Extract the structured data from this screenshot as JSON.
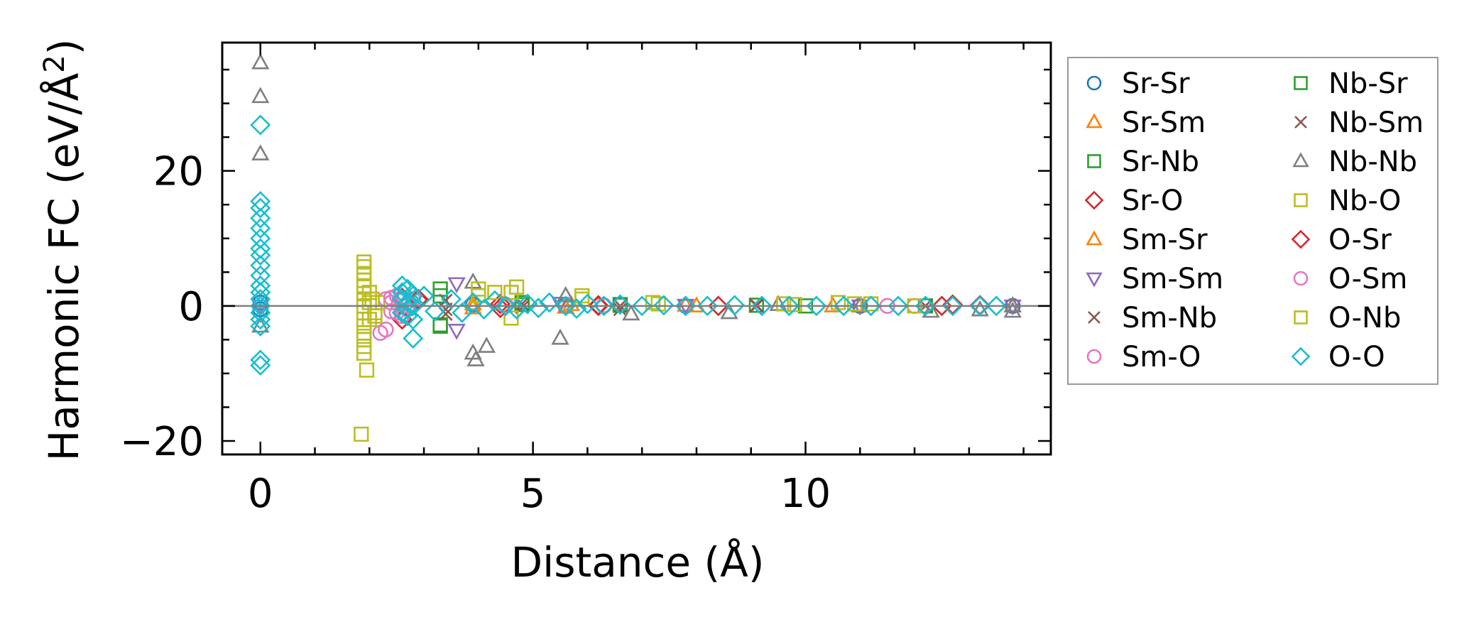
{
  "chart_data": {
    "type": "scatter",
    "title": "",
    "xlabel": "Distance (Å)",
    "ylabel_main": "Harmonic FC (eV/Å",
    "ylabel_sup": "2",
    "ylabel_close": ")",
    "xlim": [
      -0.7,
      14.5
    ],
    "ylim": [
      -22,
      39
    ],
    "xticks": [
      0,
      5,
      10
    ],
    "yticks": [
      -20,
      0,
      20
    ],
    "xtick_labels": [
      "0",
      "5",
      "10"
    ],
    "ytick_labels": [
      "−20",
      "0",
      "20"
    ],
    "zero_line": true,
    "grid": false,
    "legend_position": "outside-right",
    "series": [
      {
        "name": "Sr-Sr",
        "marker": "circle",
        "color": "#1f77b4",
        "points": [
          [
            0,
            0.5
          ],
          [
            0,
            -0.5
          ],
          [
            3.9,
            0.2
          ],
          [
            5.6,
            0.1
          ],
          [
            7.8,
            0.0
          ],
          [
            11.0,
            0.0
          ],
          [
            13.8,
            0.0
          ]
        ]
      },
      {
        "name": "Sr-Sm",
        "marker": "triangle-up",
        "color": "#ff7f0e",
        "points": [
          [
            3.9,
            0.3
          ],
          [
            5.6,
            -0.2
          ],
          [
            7.8,
            0.1
          ],
          [
            11.0,
            0.0
          ],
          [
            13.8,
            0.0
          ]
        ]
      },
      {
        "name": "Sr-Nb",
        "marker": "square",
        "color": "#2ca02c",
        "points": [
          [
            3.3,
            1.5
          ],
          [
            3.3,
            -2.8
          ],
          [
            4.8,
            0.5
          ],
          [
            6.6,
            0.2
          ],
          [
            9.1,
            0.1
          ],
          [
            12.2,
            0.0
          ]
        ]
      },
      {
        "name": "Sr-O",
        "marker": "diamond",
        "color": "#d62728",
        "points": [
          [
            2.6,
            1.2
          ],
          [
            2.6,
            -2.0
          ],
          [
            2.9,
            0.8
          ],
          [
            4.4,
            0.3
          ],
          [
            6.2,
            0.1
          ],
          [
            8.4,
            0.0
          ],
          [
            12.5,
            0.0
          ],
          [
            13.2,
            0.1
          ]
        ]
      },
      {
        "name": "Sm-Sr",
        "marker": "triangle-up",
        "color": "#ff7f0e",
        "points": [
          [
            3.9,
            -0.3
          ],
          [
            5.7,
            0.2
          ],
          [
            8.0,
            0.0
          ],
          [
            10.5,
            0.0
          ]
        ]
      },
      {
        "name": "Sm-Sm",
        "marker": "triangle-down",
        "color": "#9467bd",
        "points": [
          [
            0,
            0.0
          ],
          [
            3.6,
            3.3
          ],
          [
            3.6,
            -3.6
          ],
          [
            5.5,
            0.4
          ],
          [
            7.8,
            0.1
          ],
          [
            11.0,
            0.0
          ],
          [
            13.8,
            0.0
          ]
        ]
      },
      {
        "name": "Sm-Nb",
        "marker": "x",
        "color": "#8c564b",
        "points": [
          [
            3.4,
            0.8
          ],
          [
            3.4,
            -1.2
          ],
          [
            4.8,
            0.3
          ],
          [
            6.6,
            -0.5
          ],
          [
            9.1,
            0.1
          ],
          [
            12.2,
            0.0
          ]
        ]
      },
      {
        "name": "Sm-O",
        "marker": "circle",
        "color": "#e377c2",
        "points": [
          [
            2.2,
            -4.0
          ],
          [
            2.3,
            1.0
          ],
          [
            2.4,
            0.5
          ],
          [
            2.4,
            -0.8
          ],
          [
            2.5,
            1.5
          ],
          [
            2.6,
            -1.5
          ],
          [
            2.7,
            0.0
          ],
          [
            2.8,
            1.0
          ],
          [
            4.5,
            0.2
          ],
          [
            6.3,
            0.1
          ],
          [
            12.0,
            0.0
          ]
        ]
      },
      {
        "name": "Nb-Sr",
        "marker": "square",
        "color": "#2ca02c",
        "points": [
          [
            3.3,
            2.5
          ],
          [
            3.3,
            -3.0
          ],
          [
            4.8,
            0.2
          ],
          [
            6.6,
            0.1
          ],
          [
            10.0,
            0.0
          ]
        ]
      },
      {
        "name": "Nb-Sm",
        "marker": "x",
        "color": "#8c564b",
        "points": [
          [
            3.4,
            -0.5
          ],
          [
            4.8,
            -0.2
          ],
          [
            6.6,
            0.0
          ],
          [
            9.1,
            0.0
          ]
        ]
      },
      {
        "name": "Nb-Nb",
        "marker": "triangle-up",
        "color": "#7f7f7f",
        "points": [
          [
            0,
            36.0
          ],
          [
            0,
            31.0
          ],
          [
            0,
            22.5
          ],
          [
            0,
            -3.0
          ],
          [
            3.9,
            3.5
          ],
          [
            3.9,
            -7.0
          ],
          [
            3.95,
            -8.0
          ],
          [
            4.15,
            -6.0
          ],
          [
            5.5,
            -4.8
          ],
          [
            5.6,
            1.5
          ],
          [
            6.8,
            -1.2
          ],
          [
            8.6,
            -1.0
          ],
          [
            9.5,
            0.2
          ],
          [
            11.0,
            0.0
          ],
          [
            12.3,
            -0.8
          ],
          [
            13.2,
            -0.6
          ],
          [
            13.8,
            0.0
          ],
          [
            13.8,
            -0.8
          ]
        ]
      },
      {
        "name": "Nb-O",
        "marker": "square",
        "color": "#bcbd22",
        "points": [
          [
            1.9,
            6.5
          ],
          [
            1.9,
            5.8
          ],
          [
            1.9,
            4.8
          ],
          [
            1.9,
            3.8
          ],
          [
            1.9,
            2.8
          ],
          [
            1.9,
            1.8
          ],
          [
            1.9,
            1.0
          ],
          [
            1.9,
            0.0
          ],
          [
            1.9,
            -1.0
          ],
          [
            1.9,
            -2.0
          ],
          [
            1.9,
            -3.0
          ],
          [
            1.9,
            -4.0
          ],
          [
            1.9,
            -5.0
          ],
          [
            1.9,
            -6.0
          ],
          [
            1.9,
            -7.0
          ],
          [
            1.95,
            -9.5
          ],
          [
            1.85,
            -19.0
          ],
          [
            2.0,
            2.0
          ],
          [
            2.0,
            -2.0
          ],
          [
            2.05,
            1.0
          ],
          [
            2.1,
            -1.0
          ],
          [
            2.15,
            0.5
          ],
          [
            4.0,
            2.5
          ],
          [
            4.3,
            2.0
          ],
          [
            4.7,
            2.8
          ],
          [
            4.6,
            -1.8
          ],
          [
            5.9,
            1.5
          ],
          [
            7.2,
            0.5
          ],
          [
            9.6,
            0.3
          ],
          [
            10.6,
            0.5
          ],
          [
            11.2,
            0.3
          ]
        ]
      },
      {
        "name": "O-Sr",
        "marker": "diamond",
        "color": "#d62728",
        "points": [
          [
            2.6,
            -1.0
          ],
          [
            2.9,
            1.0
          ],
          [
            4.4,
            -0.3
          ],
          [
            6.2,
            0.0
          ],
          [
            12.7,
            0.2
          ]
        ]
      },
      {
        "name": "O-Sm",
        "marker": "circle",
        "color": "#e377c2",
        "points": [
          [
            2.3,
            -3.5
          ],
          [
            2.4,
            1.2
          ],
          [
            2.5,
            -1.0
          ],
          [
            2.6,
            0.8
          ],
          [
            2.7,
            -0.5
          ],
          [
            4.5,
            0.1
          ],
          [
            6.3,
            0.0
          ],
          [
            11.5,
            0.0
          ]
        ]
      },
      {
        "name": "O-Nb",
        "marker": "square",
        "color": "#bcbd22",
        "points": [
          [
            1.9,
            3.0
          ],
          [
            1.9,
            -4.5
          ],
          [
            2.0,
            0.5
          ],
          [
            2.1,
            -1.5
          ],
          [
            4.0,
            1.5
          ],
          [
            4.6,
            2.0
          ],
          [
            5.9,
            1.0
          ],
          [
            7.3,
            0.3
          ],
          [
            9.8,
            0.2
          ],
          [
            10.9,
            0.3
          ],
          [
            12.0,
            0.0
          ]
        ]
      },
      {
        "name": "O-O",
        "marker": "diamond",
        "color": "#17becf",
        "points": [
          [
            0,
            26.8
          ],
          [
            0,
            15.5
          ],
          [
            0,
            14.5
          ],
          [
            0,
            13.0
          ],
          [
            0,
            11.5
          ],
          [
            0,
            10.0
          ],
          [
            0,
            8.5
          ],
          [
            0,
            7.5
          ],
          [
            0,
            6.0
          ],
          [
            0,
            4.5
          ],
          [
            0,
            3.0
          ],
          [
            0,
            2.0
          ],
          [
            0,
            1.0
          ],
          [
            0,
            0.0
          ],
          [
            0,
            -1.0
          ],
          [
            0,
            -2.0
          ],
          [
            0,
            -3.0
          ],
          [
            0,
            -8.0
          ],
          [
            0,
            -8.8
          ],
          [
            2.6,
            3.0
          ],
          [
            2.7,
            2.5
          ],
          [
            2.6,
            2.0
          ],
          [
            2.8,
            1.5
          ],
          [
            2.6,
            1.0
          ],
          [
            2.7,
            0.5
          ],
          [
            2.8,
            0.0
          ],
          [
            2.7,
            -0.5
          ],
          [
            2.6,
            -1.0
          ],
          [
            2.7,
            -1.5
          ],
          [
            2.8,
            -2.0
          ],
          [
            2.8,
            -4.8
          ],
          [
            3.0,
            1.5
          ],
          [
            3.2,
            -0.8
          ],
          [
            3.5,
            1.0
          ],
          [
            3.7,
            -1.0
          ],
          [
            3.9,
            0.5
          ],
          [
            4.1,
            -0.5
          ],
          [
            4.3,
            0.8
          ],
          [
            4.5,
            0.0
          ],
          [
            4.7,
            -0.5
          ],
          [
            4.9,
            0.3
          ],
          [
            5.1,
            -0.3
          ],
          [
            5.3,
            0.5
          ],
          [
            5.6,
            0.0
          ],
          [
            5.8,
            -0.4
          ],
          [
            6.0,
            0.3
          ],
          [
            6.3,
            0.0
          ],
          [
            6.6,
            0.2
          ],
          [
            7.0,
            0.0
          ],
          [
            7.4,
            0.1
          ],
          [
            7.8,
            0.0
          ],
          [
            8.2,
            0.0
          ],
          [
            8.7,
            0.1
          ],
          [
            9.2,
            0.0
          ],
          [
            9.7,
            0.0
          ],
          [
            10.2,
            0.0
          ],
          [
            10.7,
            0.0
          ],
          [
            11.2,
            0.0
          ],
          [
            11.7,
            0.0
          ],
          [
            12.2,
            0.0
          ],
          [
            12.7,
            0.0
          ],
          [
            13.2,
            0.0
          ],
          [
            13.5,
            0.0
          ]
        ]
      }
    ]
  }
}
